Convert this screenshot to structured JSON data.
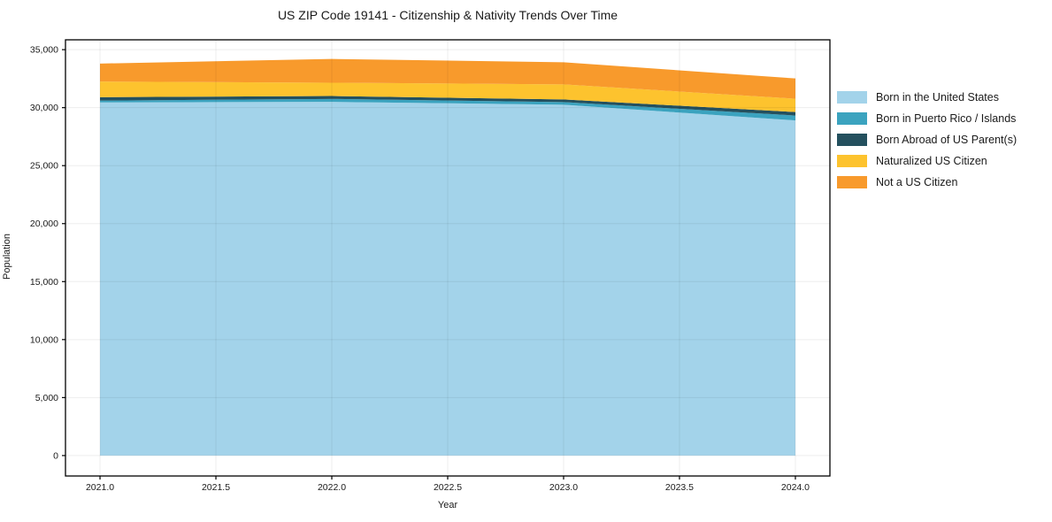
{
  "title": "US ZIP Code 19141 - Citizenship & Nativity Trends Over Time",
  "xlabel": "Year",
  "ylabel": "Population",
  "chart_data": {
    "type": "area",
    "stacked": true,
    "title": "US ZIP Code 19141 - Citizenship & Nativity Trends Over Time",
    "xlabel": "Year",
    "ylabel": "Population",
    "x": [
      2021,
      2022,
      2023,
      2024
    ],
    "series": [
      {
        "name": "Born in the United States",
        "color": "#A3D3EA",
        "values": [
          30450,
          30500,
          30250,
          28900
        ]
      },
      {
        "name": "Born in Puerto Rico / Islands",
        "color": "#3BA3BF",
        "values": [
          160,
          250,
          230,
          420
        ]
      },
      {
        "name": "Born Abroad of US Parent(s)",
        "color": "#24505E",
        "values": [
          290,
          250,
          230,
          300
        ]
      },
      {
        "name": "Naturalized US Citizen",
        "color": "#FDC32E",
        "values": [
          1350,
          1150,
          1300,
          1150
        ]
      },
      {
        "name": "Not a US Citizen",
        "color": "#F89A2C",
        "values": [
          1550,
          2050,
          1900,
          1750
        ]
      }
    ],
    "totals": [
      33800,
      34200,
      33910,
      32520
    ],
    "xlim": [
      2020.851,
      2024.149
    ],
    "ylim": [
      -1762,
      35849
    ],
    "xticks": [
      2021.0,
      2021.5,
      2022.0,
      2022.5,
      2023.0,
      2023.5,
      2024.0
    ],
    "xtick_labels": [
      "2021.0",
      "2021.5",
      "2022.0",
      "2022.5",
      "2023.0",
      "2023.5",
      "2024.0"
    ],
    "yticks": [
      0,
      5000,
      10000,
      15000,
      20000,
      25000,
      30000,
      35000
    ],
    "ytick_labels": [
      "0",
      "5,000",
      "10,000",
      "15,000",
      "20,000",
      "25,000",
      "30,000",
      "35,000"
    ],
    "grid": true,
    "legend_position": "right"
  },
  "style": {
    "spine_color": "#000000",
    "grid_color_rgba": "rgba(0,0,0,0.07)",
    "tick_text_color": "#1a1a1a",
    "background": "#ffffff"
  }
}
